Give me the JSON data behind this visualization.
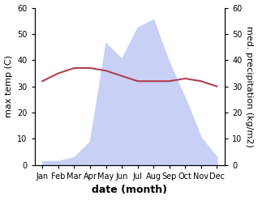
{
  "months": [
    "Jan",
    "Feb",
    "Mar",
    "Apr",
    "May",
    "Jun",
    "Jul",
    "Aug",
    "Sep",
    "Oct",
    "Nov",
    "Dec"
  ],
  "month_positions": [
    0,
    1,
    2,
    3,
    4,
    5,
    6,
    7,
    8,
    9,
    10,
    11
  ],
  "precipitation_kg": [
    5,
    5,
    10,
    30,
    155,
    135,
    175,
    185,
    130,
    85,
    35,
    10
  ],
  "temperature_C": [
    32,
    35,
    37,
    37,
    36,
    34,
    32,
    32,
    32,
    33,
    32,
    30
  ],
  "precip_fill_color": "#c8d0f5",
  "temp_color": "#b04050",
  "ylabel_left": "max temp (C)",
  "ylabel_right": "med. precipitation (kg/m2)",
  "xlabel": "date (month)",
  "ylim_left": [
    0,
    60
  ],
  "ylim_right": [
    0,
    200
  ],
  "yticks_left": [
    0,
    10,
    20,
    30,
    40,
    50,
    60
  ],
  "yticks_right": [
    0,
    10,
    20,
    30,
    40,
    50,
    60
  ],
  "background_color": "#ffffff",
  "axis_fontsize": 8,
  "tick_fontsize": 7
}
